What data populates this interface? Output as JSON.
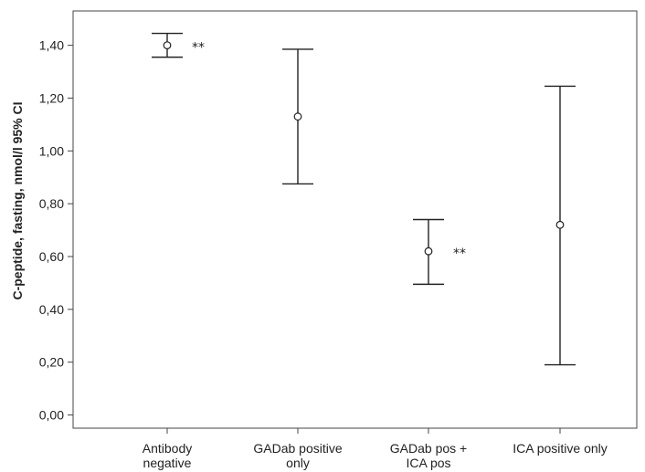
{
  "chart_data": {
    "type": "errorbar",
    "ylabel": "C-peptide,  fasting, nmol/l    95% CI",
    "xlabel": "",
    "ylim": [
      -0.05,
      1.53
    ],
    "yticks": [
      "0,00",
      "0,20",
      "0,40",
      "0,60",
      "0,80",
      "1,00",
      "1,20",
      "1,40"
    ],
    "ytick_values": [
      0.0,
      0.2,
      0.4,
      0.6,
      0.8,
      1.0,
      1.2,
      1.4
    ],
    "grid": false,
    "categories": [
      [
        "Antibody",
        "negative"
      ],
      [
        "GADab positive",
        "only"
      ],
      [
        "GADab pos +",
        "ICA pos"
      ],
      [
        "ICA positive only"
      ]
    ],
    "means": [
      1.4,
      1.13,
      0.62,
      0.72
    ],
    "lower": [
      1.355,
      0.875,
      0.495,
      0.19
    ],
    "upper": [
      1.445,
      1.385,
      0.74,
      1.245
    ],
    "annotations": [
      "**",
      "",
      "**",
      ""
    ]
  }
}
